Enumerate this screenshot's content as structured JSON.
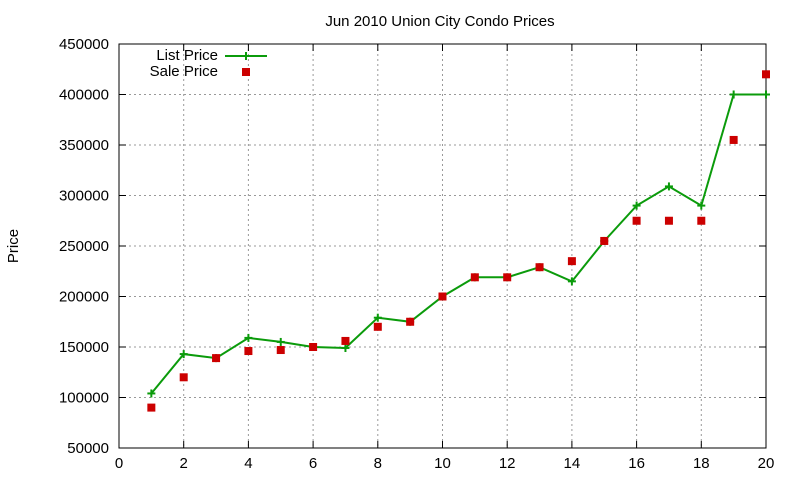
{
  "chart_data": {
    "type": "line",
    "title": "Jun 2010 Union City Condo Prices",
    "xlabel": "",
    "ylabel": "Price",
    "xlim": [
      0,
      20
    ],
    "ylim": [
      50000,
      450000
    ],
    "xticks": [
      0,
      2,
      4,
      6,
      8,
      10,
      12,
      14,
      16,
      18,
      20
    ],
    "yticks": [
      50000,
      100000,
      150000,
      200000,
      250000,
      300000,
      350000,
      400000,
      450000
    ],
    "x_tick_labels": [
      "0",
      "2",
      "4",
      "6",
      "8",
      "10",
      "12",
      "14",
      "16",
      "18",
      "20"
    ],
    "y_tick_labels": [
      "50000",
      "100000",
      "150000",
      "200000",
      "250000",
      "300000",
      "350000",
      "400000",
      "450000"
    ],
    "grid": true,
    "legend_position": "top-left",
    "x": [
      1,
      2,
      3,
      4,
      5,
      6,
      7,
      8,
      9,
      10,
      11,
      12,
      13,
      14,
      15,
      16,
      17,
      18,
      19,
      20
    ],
    "series": [
      {
        "name": "List Price",
        "style": "line-with-plus-markers",
        "color": "#0b9b0b",
        "values": [
          104000,
          143000,
          139000,
          159000,
          155000,
          150000,
          149000,
          179000,
          175000,
          200000,
          219000,
          219000,
          229000,
          215000,
          255000,
          290000,
          309000,
          290000,
          400000,
          400000
        ]
      },
      {
        "name": "Sale Price",
        "style": "square-markers",
        "color": "#cc0000",
        "values": [
          90000,
          120000,
          139000,
          146000,
          147000,
          150000,
          156000,
          170000,
          175000,
          200000,
          219000,
          219000,
          229000,
          235000,
          255000,
          275000,
          275000,
          275000,
          355000,
          420000
        ]
      }
    ]
  }
}
